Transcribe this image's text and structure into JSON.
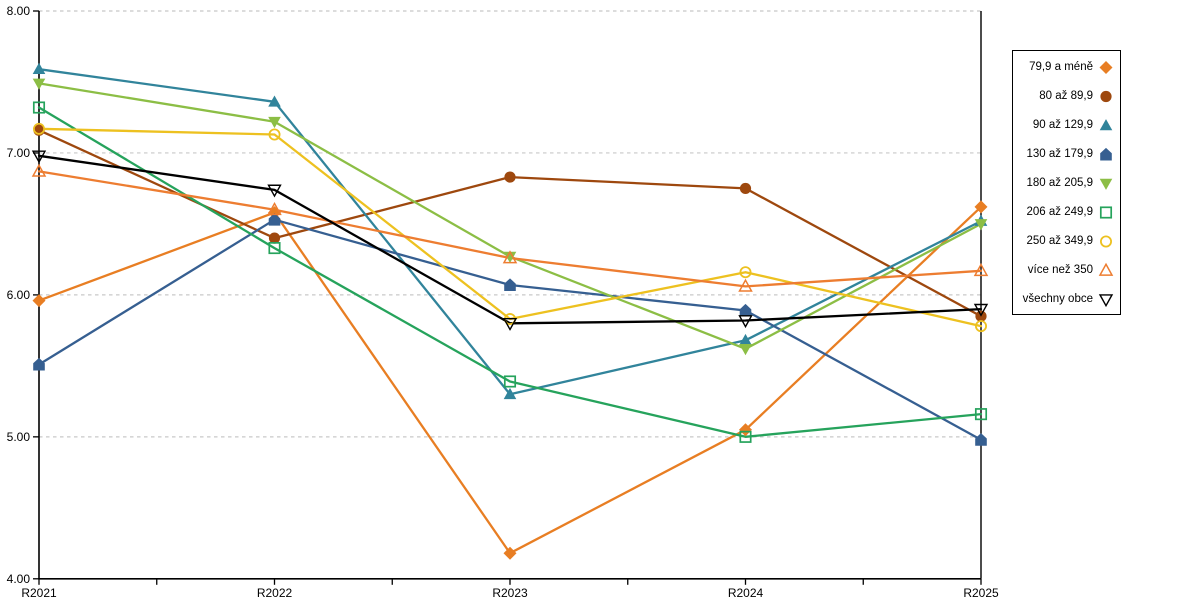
{
  "chart_data": {
    "type": "line",
    "title": "",
    "xlabel": "",
    "ylabel": "",
    "categories": [
      "R2021",
      "R2022",
      "R2023",
      "R2024",
      "R2025"
    ],
    "series": [
      {
        "name": "79,9 a méně",
        "marker": "diamond-filled",
        "color": "#E87E23",
        "values": [
          5.96,
          6.58,
          4.18,
          5.05,
          6.62
        ]
      },
      {
        "name": "80 až 89,9",
        "marker": "circle-filled",
        "color": "#9E480E",
        "values": [
          7.16,
          6.4,
          6.83,
          6.75,
          5.85
        ]
      },
      {
        "name": "90 až 129,9",
        "marker": "triangle-up-filled",
        "color": "#31849B",
        "values": [
          7.59,
          7.36,
          5.3,
          5.68,
          6.52
        ]
      },
      {
        "name": "130 až 179,9",
        "marker": "pentagon-filled",
        "color": "#365F91",
        "values": [
          5.51,
          6.53,
          6.07,
          5.89,
          4.98
        ]
      },
      {
        "name": "180 až 205,9",
        "marker": "triangle-down-filled",
        "color": "#8CBE45",
        "values": [
          7.49,
          7.22,
          6.27,
          5.62,
          6.5
        ]
      },
      {
        "name": "206 až 249,9",
        "marker": "square-open",
        "color": "#26A35C",
        "values": [
          7.32,
          6.33,
          5.39,
          5.0,
          5.16
        ]
      },
      {
        "name": "250 až 349,9",
        "marker": "circle-open",
        "color": "#EDC120",
        "values": [
          7.17,
          7.13,
          5.83,
          6.16,
          5.78
        ]
      },
      {
        "name": "více než 350",
        "marker": "triangle-up-open",
        "color": "#ED7D31",
        "values": [
          6.87,
          6.6,
          6.26,
          6.06,
          6.17
        ]
      },
      {
        "name": "všechny obce",
        "marker": "triangle-down-open",
        "color": "#000000",
        "values": [
          6.98,
          6.74,
          5.8,
          5.82,
          5.9
        ]
      }
    ],
    "y_axis": {
      "min": 4,
      "max": 8,
      "step": 1,
      "tick_labels": [
        "8.00",
        "7.00",
        "6.00",
        "5.00",
        "4.00"
      ]
    },
    "grid": "horizontal-dashed",
    "grid_color": "#C8C8C8",
    "axis_color": "#000000",
    "legend_position": "right"
  }
}
